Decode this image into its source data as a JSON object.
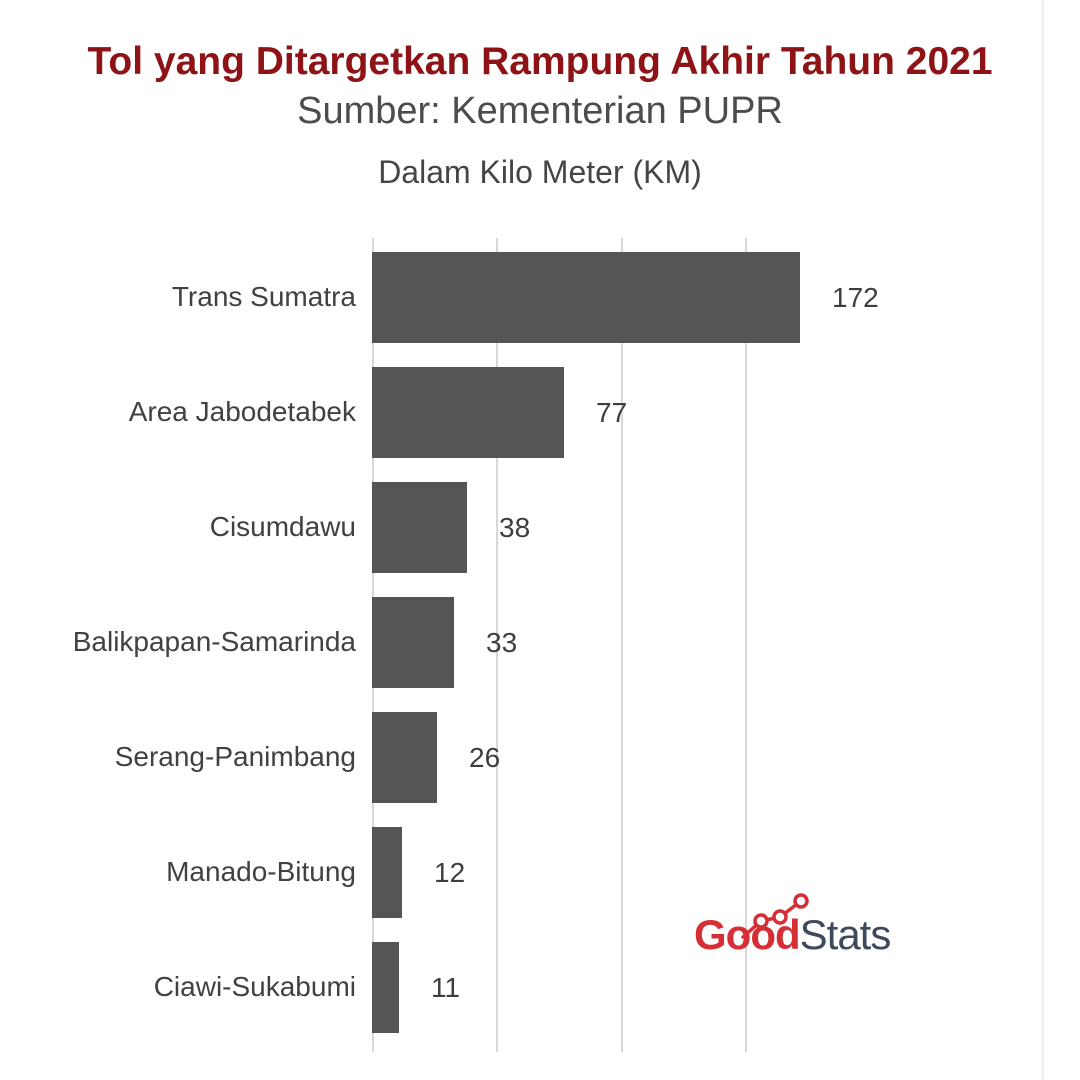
{
  "chart_data": {
    "type": "bar",
    "orientation": "horizontal",
    "title": "Tol yang Ditargetkan Rampung Akhir Tahun 2021",
    "subtitle": "Sumber: Kementerian PUPR",
    "unit_label": "Dalam Kilo Meter (KM)",
    "categories": [
      "Trans Sumatra",
      "Area Jabodetabek",
      "Cisumdawu",
      "Balikpapan-Samarinda",
      "Serang-Panimbang",
      "Manado-Bitung",
      "Ciawi-Sukabumi"
    ],
    "values": [
      172,
      77,
      38,
      33,
      26,
      12,
      11
    ],
    "value_labels": true,
    "xlim": [
      0,
      270
    ],
    "gridline_values": [
      0,
      50,
      100,
      150
    ],
    "grid_on": true,
    "legend": "none",
    "bar_color": "#555555",
    "grid_color": "#d8d8d8",
    "title_color": "#8e1316"
  },
  "branding": {
    "logo_text_primary": "Good",
    "logo_text_secondary": "Stats",
    "logo_primary_color": "#d62e35",
    "logo_secondary_color": "#3d4a5c",
    "logo_icon": "trend-line-icon"
  }
}
